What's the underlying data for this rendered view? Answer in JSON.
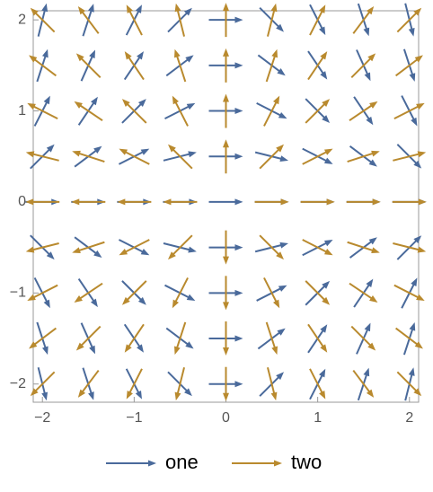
{
  "chart_data": {
    "type": "vector",
    "x": [
      -2,
      -1.5,
      -1,
      -0.5,
      0,
      0.5,
      1,
      1.5,
      2
    ],
    "y": [
      -2,
      -1.5,
      -1,
      -0.5,
      0,
      0.5,
      1,
      1.5,
      2
    ],
    "series": [
      {
        "name": "one",
        "color": "#4a6a9b",
        "angles": [
          [
            -76,
            -72,
            -63,
            -45,
            0,
            45,
            63,
            72,
            76
          ],
          [
            -72,
            -66,
            -56,
            -37,
            0,
            37,
            56,
            66,
            72
          ],
          [
            -63,
            -56,
            -45,
            -27,
            0,
            27,
            45,
            56,
            63
          ],
          [
            -45,
            -37,
            -27,
            -14,
            0,
            14,
            27,
            37,
            45
          ],
          [
            0,
            0,
            0,
            0,
            0,
            0,
            0,
            0,
            0
          ],
          [
            45,
            37,
            27,
            14,
            0,
            -14,
            -27,
            -37,
            -45
          ],
          [
            63,
            56,
            45,
            27,
            0,
            -27,
            -45,
            -56,
            -63
          ],
          [
            72,
            66,
            56,
            37,
            0,
            -37,
            -56,
            -66,
            -72
          ],
          [
            76,
            72,
            63,
            45,
            0,
            -45,
            -63,
            -72,
            -76
          ]
        ]
      },
      {
        "name": "two",
        "color": "#b98a2e",
        "angles": [
          [
            -135,
            -127,
            -117,
            -104,
            -90,
            -76,
            -63,
            -53,
            -45
          ],
          [
            -143,
            -135,
            -124,
            -108,
            -90,
            -72,
            -56,
            -45,
            -37
          ],
          [
            -153,
            -146,
            -135,
            -117,
            -90,
            -63,
            -45,
            -34,
            -27
          ],
          [
            -166,
            -162,
            -153,
            -135,
            -90,
            -45,
            -27,
            -18,
            -14
          ],
          [
            180,
            180,
            180,
            180,
            null,
            0,
            0,
            0,
            0
          ],
          [
            166,
            162,
            153,
            135,
            90,
            45,
            27,
            18,
            14
          ],
          [
            153,
            146,
            135,
            117,
            90,
            63,
            45,
            34,
            27
          ],
          [
            143,
            135,
            124,
            108,
            90,
            72,
            56,
            45,
            37
          ],
          [
            135,
            127,
            117,
            104,
            90,
            76,
            63,
            53,
            45
          ]
        ]
      }
    ],
    "xlim": [
      -2.1,
      2.1
    ],
    "ylim": [
      -2.2,
      2.1
    ],
    "xticks": [
      {
        "value": -2,
        "label": "−2"
      },
      {
        "value": -1,
        "label": "−1"
      },
      0,
      1,
      2
    ],
    "yticks": [
      {
        "value": -2,
        "label": "−2"
      },
      {
        "value": -1,
        "label": "−1"
      },
      0,
      1,
      2
    ],
    "legend": "bottom"
  }
}
